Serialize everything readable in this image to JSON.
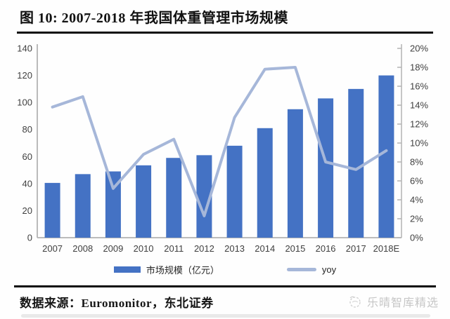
{
  "header": {
    "title": "图 10: 2007-2018 年我国体重管理市场规模"
  },
  "chart_data": {
    "type": "bar",
    "title": "2007-2018 年我国体重管理市场规模",
    "categories": [
      "2007",
      "2008",
      "2009",
      "2010",
      "2011",
      "2012",
      "2013",
      "2014",
      "2015",
      "2016",
      "2017",
      "2018E"
    ],
    "series": [
      {
        "name": "市场规模（亿元）",
        "type": "bar",
        "axis": "left",
        "color": "#4472c4",
        "values": [
          40.5,
          47,
          49,
          53.5,
          59,
          61,
          68,
          81,
          95,
          103,
          110,
          120
        ]
      },
      {
        "name": "yoy",
        "type": "line",
        "axis": "right",
        "color": "#a6b7d9",
        "values": [
          13.8,
          14.9,
          5.2,
          8.8,
          10.4,
          2.3,
          12.7,
          17.8,
          18.0,
          8.0,
          7.2,
          9.2
        ]
      }
    ],
    "left_axis": {
      "min": 0,
      "max": 140,
      "step": 20,
      "suffix": ""
    },
    "right_axis": {
      "min": 0,
      "max": 20,
      "step": 2,
      "suffix": "%"
    },
    "grid": false,
    "legend_position": "bottom",
    "axis_color": "#b3b3b3",
    "tick_label_color": "#3f3f3f"
  },
  "footer": {
    "source": "数据来源：Euromonitor，东北证券",
    "watermark": "乐晴智库精选"
  }
}
